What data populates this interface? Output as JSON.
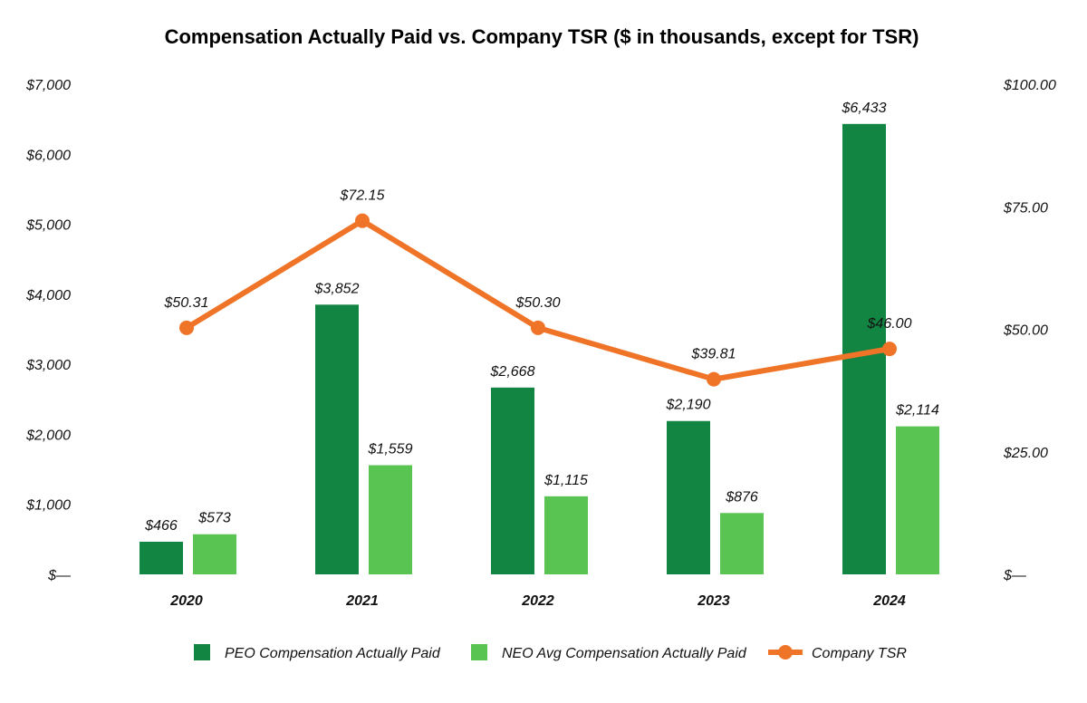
{
  "chart_data": {
    "type": "bar",
    "title": "Compensation Actually Paid vs. Company TSR ($ in thousands, except for TSR)",
    "categories": [
      "2020",
      "2021",
      "2022",
      "2023",
      "2024"
    ],
    "series": [
      {
        "name": "PEO Compensation Actually Paid",
        "kind": "bar",
        "axis": "left",
        "color": "#138542",
        "values": [
          466,
          3852,
          2668,
          2190,
          6433
        ],
        "labels": [
          "$466",
          "$3,852",
          "$2,668",
          "$2,190",
          "$6,433"
        ]
      },
      {
        "name": "NEO Avg Compensation Actually Paid",
        "kind": "bar",
        "axis": "left",
        "color": "#59c451",
        "values": [
          573,
          1559,
          1115,
          876,
          2114
        ],
        "labels": [
          "$573",
          "$1,559",
          "$1,115",
          "$876",
          "$2,114"
        ]
      },
      {
        "name": "Company TSR",
        "kind": "line",
        "axis": "right",
        "color": "#f07427",
        "values": [
          50.31,
          72.15,
          50.3,
          39.81,
          46.0
        ],
        "labels": [
          "$50.31",
          "$72.15",
          "$50.30",
          "$39.81",
          "$46.00"
        ]
      }
    ],
    "y_left": {
      "range": [
        0,
        7000
      ],
      "ticks": [
        0,
        1000,
        2000,
        3000,
        4000,
        5000,
        6000,
        7000
      ],
      "tick_labels": [
        "$—",
        "$1,000",
        "$2,000",
        "$3,000",
        "$4,000",
        "$5,000",
        "$6,000",
        "$7,000"
      ]
    },
    "y_right": {
      "range": [
        0,
        100
      ],
      "ticks": [
        0,
        25,
        50,
        75,
        100
      ],
      "tick_labels": [
        "$—",
        "$25.00",
        "$50.00",
        "$75.00",
        "$100.00"
      ]
    },
    "grid": false,
    "legend_position": "bottom-center"
  }
}
